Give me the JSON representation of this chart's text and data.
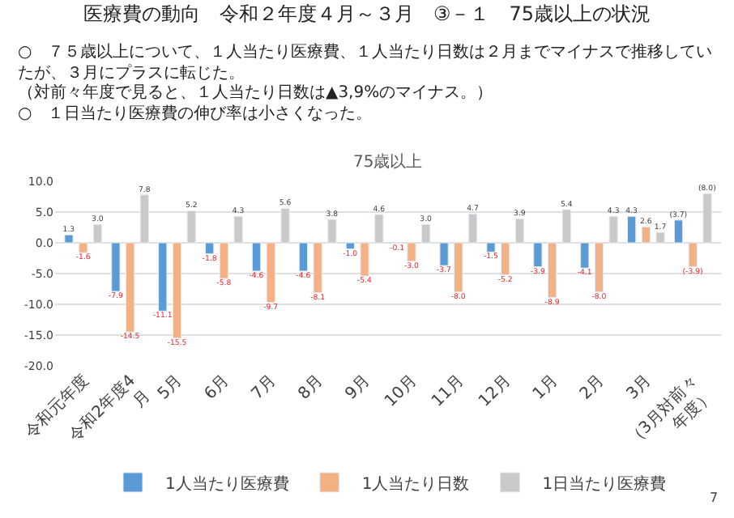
{
  "chart_data": {
    "type": "bar",
    "title": "医療費の動向　令和２年度４月～３月　③－１　75歳以上の状況",
    "subtitle": "75歳以上",
    "annotations": [
      "○　７５歳以上について、１人当たり医療費、１人当たり日数は２月までマイナスで推移していたが、３月にプラスに転じた。",
      "（対前々年度で見ると、１人当たり日数は▲3,9%のマイナス。）",
      "○　１日当たり医療費の伸び率は小さくなった。",
      "7"
    ],
    "categories": [
      "令和元年度",
      "令和2年度4月",
      "5月",
      "6月",
      "7月",
      "8月",
      "9月",
      "10月",
      "11月",
      "12月",
      "1月",
      "2月",
      "3月",
      "（3月対前々年度）"
    ],
    "series": [
      {
        "name": "1人当たり医療費",
        "color": "#5b9bd5",
        "values": [
          1.3,
          -7.9,
          -11.1,
          -1.8,
          -4.6,
          -4.6,
          -1.0,
          -0.1,
          -3.7,
          -1.5,
          -3.9,
          -4.1,
          4.3,
          3.7
        ],
        "value_labels": [
          "1.3",
          "-7.9",
          "-11.1",
          "-1.8",
          "-4.6",
          "-4.6",
          "-1.0",
          "-0.1",
          "-3.7",
          "-1.5",
          "-3.9",
          "-4.1",
          "4.3",
          "(3.7)"
        ]
      },
      {
        "name": "1人当たり日数",
        "color": "#f4b183",
        "values": [
          -1.6,
          -14.5,
          -15.5,
          -5.8,
          -9.7,
          -8.1,
          -5.4,
          -3.0,
          -8.0,
          -5.2,
          -8.9,
          -8.0,
          2.6,
          -3.9
        ],
        "value_labels": [
          "-1.6",
          "-14.5",
          "-15.5",
          "-5.8",
          "-9.7",
          "-8.1",
          "-5.4",
          "-3.0",
          "-8.0",
          "-5.2",
          "-8.9",
          "-8.0",
          "2.6",
          "(-3.9)"
        ]
      },
      {
        "name": "1日当たり医療費",
        "color": "#c9c9c9",
        "values": [
          3.0,
          7.8,
          5.2,
          4.3,
          5.6,
          3.8,
          4.6,
          3.0,
          4.7,
          3.9,
          5.4,
          4.3,
          1.7,
          8.0
        ],
        "value_labels": [
          "3.0",
          "7.8",
          "5.2",
          "4.3",
          "5.6",
          "3.8",
          "4.6",
          "3.0",
          "4.7",
          "3.9",
          "5.4",
          "4.3",
          "1.7",
          "(8.0)"
        ]
      }
    ],
    "ylim": [
      -20,
      10
    ],
    "yticks": [
      {
        "value": 10,
        "label": "10.0"
      },
      {
        "value": 5,
        "label": "5.0"
      },
      {
        "value": 0,
        "label": "0.0"
      },
      {
        "value": -5,
        "label": "-5.0"
      },
      {
        "value": -10,
        "label": "-10.0"
      },
      {
        "value": -15,
        "label": "-15.0"
      },
      {
        "value": -20,
        "label": "-20.0"
      }
    ],
    "grid": "y",
    "legend": "bottom"
  }
}
